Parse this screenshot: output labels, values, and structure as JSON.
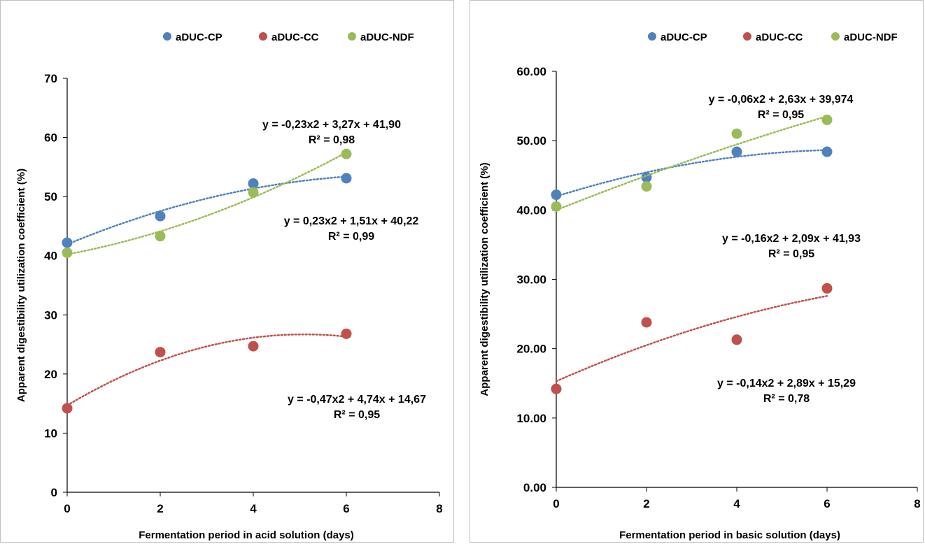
{
  "colors": {
    "aDUC-CP": "#4f81bd",
    "aDUC-CC": "#c0504d",
    "aDUC-NDF": "#9bbb59"
  },
  "chart_data": [
    {
      "type": "scatter",
      "title": "",
      "xlabel": "Fermentation period in acid solution (days)",
      "ylabel": "Apparent digestibility utilization coefficient (%)",
      "xlim": [
        0,
        8
      ],
      "ylim": [
        0,
        70
      ],
      "x_ticks": [
        "0",
        "2",
        "4",
        "6",
        "8"
      ],
      "y_ticks": [
        "0",
        "10",
        "20",
        "30",
        "40",
        "50",
        "60",
        "70"
      ],
      "legend_position": "top",
      "grid": false,
      "series": [
        {
          "name": "aDUC-CP",
          "x": [
            0,
            2,
            4,
            6
          ],
          "y": [
            42.2,
            46.7,
            52.2,
            53.1
          ],
          "trendline": "polynomial-2"
        },
        {
          "name": "aDUC-CC",
          "x": [
            0,
            2,
            4,
            6
          ],
          "y": [
            14.2,
            23.7,
            24.7,
            26.8
          ],
          "trendline": "polynomial-2"
        },
        {
          "name": "aDUC-NDF",
          "x": [
            0,
            2,
            4,
            6
          ],
          "y": [
            40.5,
            43.3,
            50.7,
            57.2
          ],
          "trendline": "polynomial-2"
        }
      ],
      "annotations": [
        {
          "lines": [
            "y = -0,23x2 + 3,27x + 41,90",
            "R² = 0,98"
          ]
        },
        {
          "lines": [
            "y = 0,23x2 + 1,51x + 40,22",
            "R² = 0,99"
          ]
        },
        {
          "lines": [
            "y = -0,47x2 + 4,74x + 14,67",
            "R² = 0,95"
          ]
        }
      ]
    },
    {
      "type": "scatter",
      "title": "",
      "xlabel": "Fermentation period in basic solution (days)",
      "ylabel": "Apparent digestibility utilization coefficient (%)",
      "xlim": [
        0,
        8
      ],
      "ylim": [
        0,
        60
      ],
      "x_ticks": [
        "0",
        "2",
        "4",
        "6",
        "8"
      ],
      "y_ticks": [
        "0.00",
        "10.00",
        "20.00",
        "30.00",
        "40.00",
        "50.00",
        "60.00"
      ],
      "legend_position": "top",
      "grid": false,
      "series": [
        {
          "name": "aDUC-CP",
          "x": [
            0,
            2,
            4,
            6
          ],
          "y": [
            42.2,
            44.7,
            48.4,
            48.4
          ],
          "trendline": "polynomial-2"
        },
        {
          "name": "aDUC-CC",
          "x": [
            0,
            2,
            4,
            6
          ],
          "y": [
            14.2,
            23.8,
            21.3,
            28.7
          ],
          "trendline": "polynomial-2"
        },
        {
          "name": "aDUC-NDF",
          "x": [
            0,
            2,
            4,
            6
          ],
          "y": [
            40.5,
            43.4,
            51.0,
            53.0
          ],
          "trendline": "polynomial-2"
        }
      ],
      "annotations": [
        {
          "lines": [
            "y = -0,06x2 + 2,63x + 39,974",
            "R² = 0,95"
          ]
        },
        {
          "lines": [
            "y = -0,16x2 + 2,09x + 41,93",
            "R² = 0,95"
          ]
        },
        {
          "lines": [
            "y = -0,14x2 + 2,89x + 15,29",
            "R² = 0,78"
          ]
        }
      ]
    }
  ]
}
